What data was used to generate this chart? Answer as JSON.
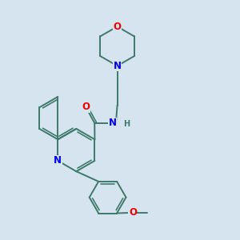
{
  "bg_color": "#d6e4f0",
  "bond_color": "#3d7a6a",
  "atom_colors": {
    "N": "#0000ee",
    "O": "#ee0000",
    "C": "#3d7a6a"
  },
  "bond_width": 1.4,
  "font_size_atom": 8.5,
  "font_size_H": 7.0
}
